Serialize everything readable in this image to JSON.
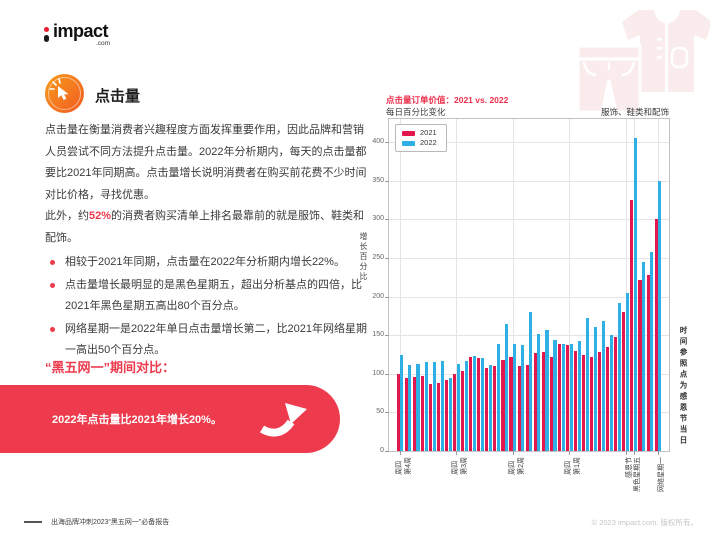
{
  "logo": {
    "text": "impact",
    "suffix": ".com"
  },
  "header": {
    "title": "点击量"
  },
  "intro": {
    "p1": "点击量在衡量消费者兴趣程度方面发挥重要作用，因此品牌和营销人员尝试不同方法提升点击量。2022年分析期内，每天的点击量都要比2021年同期高。点击量增长说明消费者在购买前花费不少时间对比价格，寻找优惠。",
    "p2_before": "此外，约",
    "p2_highlight": "52%",
    "p2_after": "的消费者购买清单上排名最靠前的就是服饰、鞋类和配饰。"
  },
  "bullets": [
    "相较于2021年同期，点击量在2022年分析期内增长22%。",
    "点击量增长最明显的是黑色星期五，超出分析基点的四倍，比2021年黑色星期五高出80个百分点。",
    "网络星期一是2022年单日点击量增长第二，比2021年网络星期一高出50个百分点。"
  ],
  "comparison": {
    "heading": "“黑五网一”期间对比：",
    "banner_text": "2022年点击量比2021年增长20%。"
  },
  "chart_data": {
    "type": "bar",
    "title": "点击量订单价值：2021 vs. 2022",
    "subtitle": "每日百分比变化",
    "right_label": "服饰、鞋类和配饰",
    "ylabel": "增长百分比",
    "right_caption": "时间参照点为感恩节当日",
    "ylim": [
      0,
      430
    ],
    "yticks": [
      0,
      50,
      100,
      150,
      200,
      250,
      300,
      350,
      400
    ],
    "grid": true,
    "legend_position": "upper left",
    "x_days": 33,
    "xticks": [
      {
        "index": 0,
        "lines": [
          "周四",
          "第4周"
        ]
      },
      {
        "index": 7,
        "lines": [
          "周四",
          "第3周"
        ]
      },
      {
        "index": 14,
        "lines": [
          "周四",
          "第2周"
        ]
      },
      {
        "index": 21,
        "lines": [
          "周四",
          "第1周"
        ]
      },
      {
        "index": 28,
        "lines": [
          "感恩节"
        ]
      },
      {
        "index": 29,
        "lines": [
          "黑色星期五"
        ]
      },
      {
        "index": 32,
        "lines": [
          "网络星期一"
        ]
      }
    ],
    "series": [
      {
        "name": "2021",
        "color": "#E3174D",
        "values": [
          100,
          95,
          96,
          97,
          87,
          88,
          92,
          100,
          103,
          122,
          120,
          108,
          110,
          118,
          122,
          110,
          111,
          127,
          128,
          122,
          138,
          137,
          130,
          125,
          122,
          128,
          135,
          148,
          180,
          325,
          222,
          228,
          300
        ]
      },
      {
        "name": "2022",
        "color": "#2FB0E5",
        "values": [
          125,
          112,
          113,
          115,
          115,
          116,
          95,
          113,
          116,
          123,
          121,
          112,
          139,
          165,
          139,
          137,
          180,
          152,
          157,
          144,
          139,
          139,
          142,
          172,
          160,
          168,
          150,
          192,
          205,
          405,
          245,
          258,
          350
        ]
      }
    ]
  },
  "footer": {
    "left": "出海品牌冲刺2023“黑五网一”必备报告",
    "right": "© 2023 impact.com. 版权所有。"
  },
  "colors": {
    "accent": "#ED3A4D",
    "bar_2021": "#E3174D",
    "bar_2022": "#2FB0E5",
    "icon_orange": "#F5711F",
    "watermark_pink": "#FAECEC"
  }
}
